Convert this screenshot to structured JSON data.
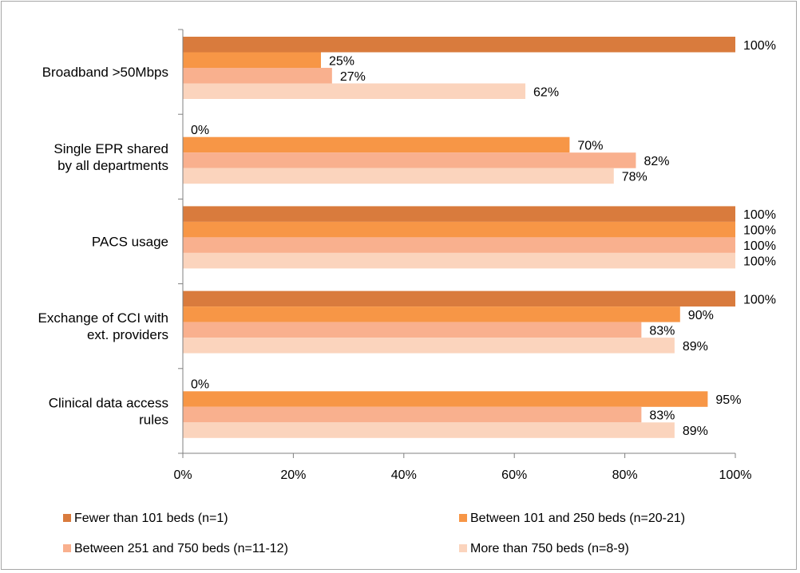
{
  "chart_data": {
    "type": "bar",
    "orientation": "horizontal",
    "title": "",
    "xlabel": "",
    "ylabel": "",
    "xlim": [
      0,
      100
    ],
    "ticks": [
      "0%",
      "20%",
      "40%",
      "60%",
      "80%",
      "100%"
    ],
    "tick_values": [
      0,
      20,
      40,
      60,
      80,
      100
    ],
    "grid": false,
    "legend_position": "bottom",
    "categories": [
      [
        "Broadband >50Mbps"
      ],
      [
        "Single EPR shared",
        "by all departments"
      ],
      [
        "PACS usage"
      ],
      [
        "Exchange of CCI with",
        "ext. providers"
      ],
      [
        "Clinical data access",
        "rules"
      ]
    ],
    "series": [
      {
        "name": "Fewer than 101 beds (n=1)",
        "color": "#d97b3d",
        "values": [
          100,
          0,
          100,
          100,
          0
        ]
      },
      {
        "name": "Between 101 and 250 beds (n=20-21)",
        "color": "#f79646",
        "values": [
          25,
          70,
          100,
          90,
          95
        ]
      },
      {
        "name": "Between 251 and 750 beds (n=11-12)",
        "color": "#f9b08e",
        "values": [
          27,
          82,
          100,
          83,
          83
        ]
      },
      {
        "name": "More than 750 beds (n=8-9)",
        "color": "#fbd4bd",
        "values": [
          62,
          78,
          100,
          89,
          89
        ]
      }
    ],
    "data_labels": [
      [
        "100%",
        "25%",
        "27%",
        "62%"
      ],
      [
        "0%",
        "70%",
        "82%",
        "78%"
      ],
      [
        "100%",
        "100%",
        "100%",
        "100%"
      ],
      [
        "100%",
        "90%",
        "83%",
        "89%"
      ],
      [
        "0%",
        "95%",
        "83%",
        "89%"
      ]
    ]
  }
}
